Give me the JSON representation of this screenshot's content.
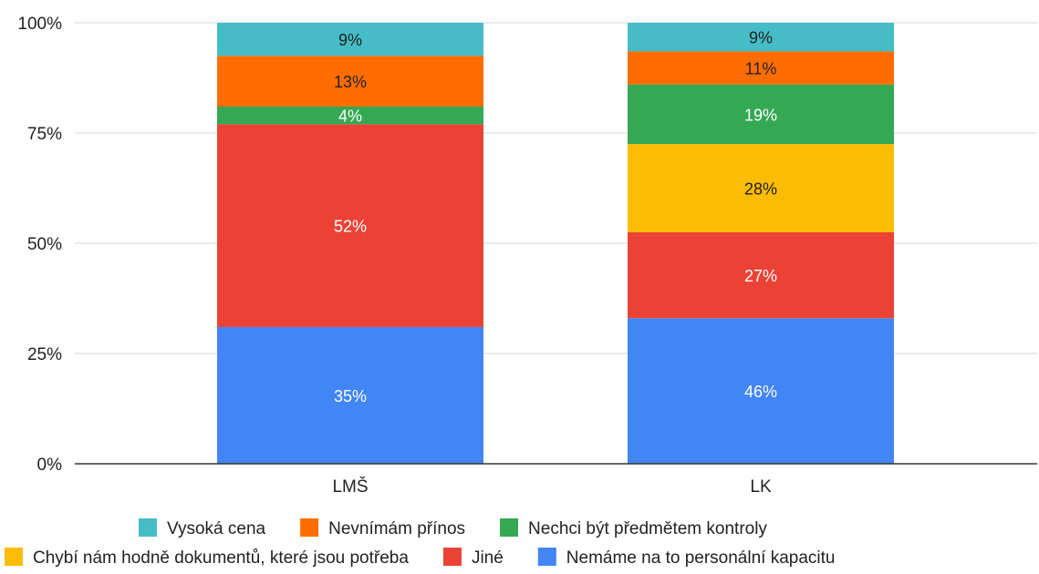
{
  "chart_data": {
    "type": "bar",
    "stacked": true,
    "normalized": true,
    "categories": [
      "LMŠ",
      "LK"
    ],
    "y_ticks": [
      "0%",
      "25%",
      "50%",
      "75%",
      "100%"
    ],
    "ylim": [
      0,
      100
    ],
    "grid": true,
    "legend_position": "bottom",
    "series": [
      {
        "name": "Nemáme na to personální kapacitu",
        "color": "#4285f4",
        "label_color": "#ffffff",
        "values": [
          31,
          33
        ],
        "labels": [
          "35%",
          "46%"
        ]
      },
      {
        "name": "Jiné",
        "color": "#ea4335",
        "label_color": "#ffffff",
        "values": [
          46,
          19.5
        ],
        "labels": [
          "52%",
          "27%"
        ]
      },
      {
        "name": "Chybí nám hodně dokumentů, které jsou potřeba",
        "color": "#fbbc04",
        "label_color": "#222222",
        "values": [
          0,
          20
        ],
        "labels": [
          "",
          "28%"
        ]
      },
      {
        "name": "Nechci být předmětem kontroly",
        "color": "#34a853",
        "label_color": "#ffffff",
        "values": [
          4,
          13.5
        ],
        "labels": [
          "4%",
          "19%"
        ]
      },
      {
        "name": "Nevnímám přínos",
        "color": "#ff6d01",
        "label_color": "#222222",
        "values": [
          11.5,
          7.5
        ],
        "labels": [
          "13%",
          "11%"
        ]
      },
      {
        "name": "Vysoká cena",
        "color": "#46bdc6",
        "label_color": "#222222",
        "values": [
          7.5,
          6.5
        ],
        "labels": [
          "9%",
          "9%"
        ]
      }
    ],
    "legend_rows": [
      [
        "Vysoká cena",
        "Nevnímám přínos",
        "Nechci být předmětem kontroly"
      ],
      [
        "Chybí nám hodně dokumentů, které jsou potřeba",
        "Jiné",
        "Nemáme na to personální kapacitu"
      ]
    ],
    "gridline_color": "#d9d9d9",
    "axis_color": "#333333"
  }
}
